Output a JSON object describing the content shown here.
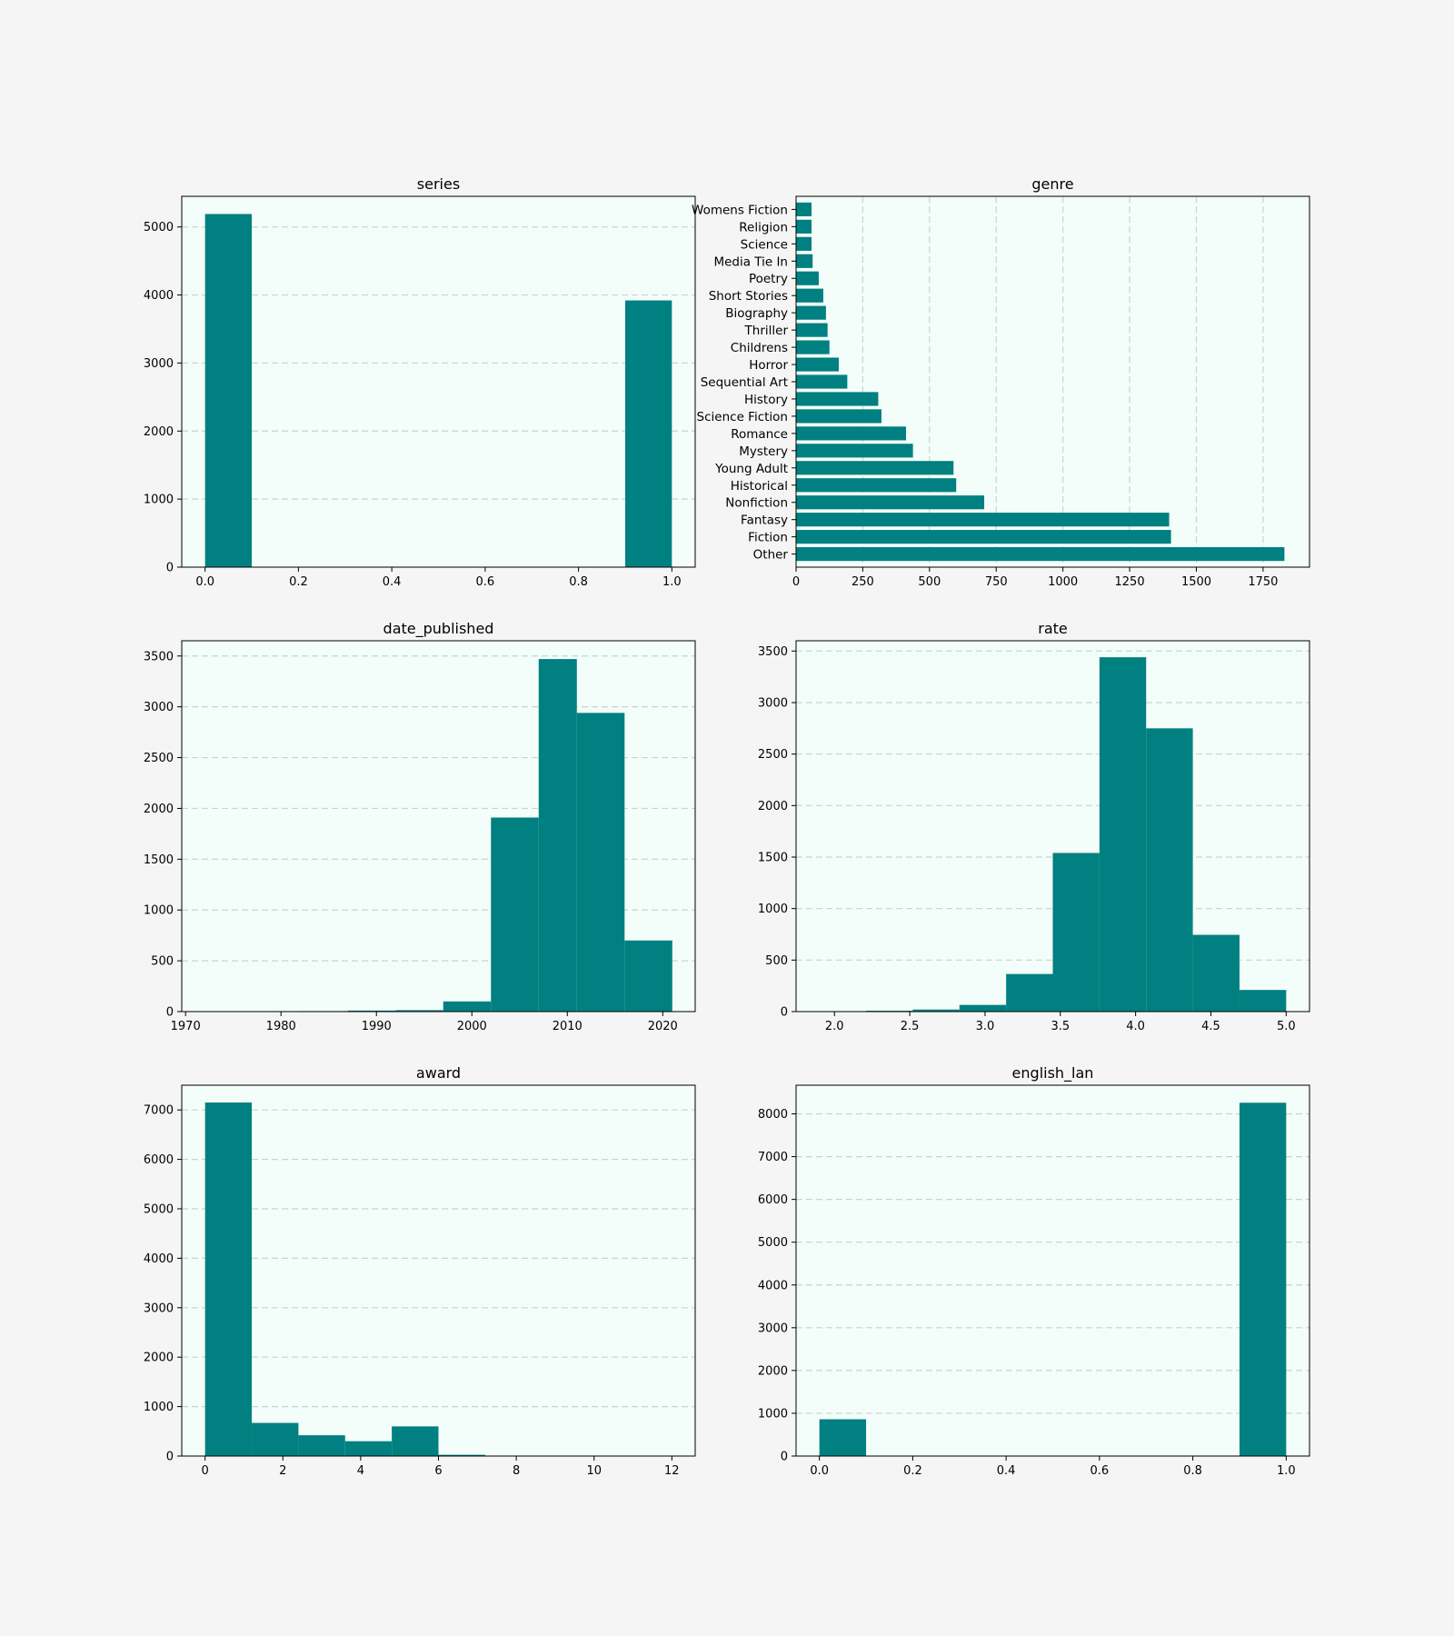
{
  "colors": {
    "figure_background": "#f5f5f5",
    "axes_background": "#f3fdf9",
    "bar": "#008080",
    "grid": "#c9d4d0"
  },
  "chart_data": [
    {
      "type": "bar",
      "title": "series",
      "orientation": "vertical",
      "bins": [
        [
          0.0,
          0.1
        ],
        [
          0.9,
          1.0
        ]
      ],
      "values": [
        5190,
        3920
      ],
      "xlim": [
        -0.05,
        1.05
      ],
      "ylim": [
        0,
        5450
      ],
      "xticks": [
        0.0,
        0.2,
        0.4,
        0.6,
        0.8,
        1.0
      ],
      "xtick_labels": [
        "0.0",
        "0.2",
        "0.4",
        "0.6",
        "0.8",
        "1.0"
      ],
      "yticks": [
        0,
        1000,
        2000,
        3000,
        4000,
        5000
      ],
      "ytick_labels": [
        "0",
        "1000",
        "2000",
        "3000",
        "4000",
        "5000"
      ],
      "grid": "horizontal dashed",
      "legend": "none"
    },
    {
      "type": "bar",
      "title": "genre",
      "orientation": "horizontal",
      "categories": [
        "Other",
        "Fiction",
        "Fantasy",
        "Nonfiction",
        "Historical",
        "Young Adult",
        "Mystery",
        "Romance",
        "Science Fiction",
        "History",
        "Sequential Art",
        "Horror",
        "Childrens",
        "Thriller",
        "Biography",
        "Short Stories",
        "Poetry",
        "Media Tie In",
        "Science",
        "Religion",
        "Womens Fiction"
      ],
      "values": [
        1830,
        1405,
        1398,
        705,
        600,
        590,
        438,
        412,
        320,
        308,
        192,
        160,
        125,
        118,
        112,
        102,
        85,
        62,
        58,
        58,
        58
      ],
      "xlim": [
        0,
        1924
      ],
      "xticks": [
        0,
        250,
        500,
        750,
        1000,
        1250,
        1500,
        1750
      ],
      "xtick_labels": [
        "0",
        "250",
        "500",
        "750",
        "1000",
        "1250",
        "1500",
        "1750"
      ],
      "grid": "vertical dashed",
      "legend": "none"
    },
    {
      "type": "bar",
      "title": "date_published",
      "orientation": "vertical",
      "bins": [
        [
          1972,
          1977
        ],
        [
          1977,
          1982
        ],
        [
          1982,
          1987
        ],
        [
          1987,
          1992
        ],
        [
          1992,
          1997
        ],
        [
          1997,
          2002
        ],
        [
          2002,
          2007
        ],
        [
          2007,
          2011
        ],
        [
          2011,
          2016
        ],
        [
          2016,
          2021
        ]
      ],
      "values": [
        2,
        3,
        5,
        10,
        14,
        100,
        1910,
        3470,
        2940,
        700
      ],
      "xlim": [
        1969.6,
        2023.4
      ],
      "ylim": [
        0,
        3650
      ],
      "xticks": [
        1970,
        1980,
        1990,
        2000,
        2010,
        2020
      ],
      "xtick_labels": [
        "1970",
        "1980",
        "1990",
        "2000",
        "2010",
        "2020"
      ],
      "yticks": [
        0,
        500,
        1000,
        1500,
        2000,
        2500,
        3000,
        3500
      ],
      "ytick_labels": [
        "0",
        "500",
        "1000",
        "1500",
        "2000",
        "2500",
        "3000",
        "3500"
      ],
      "grid": "horizontal dashed",
      "legend": "none"
    },
    {
      "type": "bar",
      "title": "rate",
      "orientation": "vertical",
      "bins": [
        [
          1.9,
          2.21
        ],
        [
          2.21,
          2.52
        ],
        [
          2.52,
          2.83
        ],
        [
          2.83,
          3.14
        ],
        [
          3.14,
          3.45
        ],
        [
          3.45,
          3.76
        ],
        [
          3.76,
          4.07
        ],
        [
          4.07,
          4.38
        ],
        [
          4.38,
          4.69
        ],
        [
          4.69,
          5.0
        ]
      ],
      "values": [
        3,
        8,
        20,
        65,
        365,
        1540,
        3440,
        2750,
        745,
        210
      ],
      "xlim": [
        1.745,
        5.155
      ],
      "ylim": [
        0,
        3600
      ],
      "xticks": [
        2.0,
        2.5,
        3.0,
        3.5,
        4.0,
        4.5,
        5.0
      ],
      "xtick_labels": [
        "2.0",
        "2.5",
        "3.0",
        "3.5",
        "4.0",
        "4.5",
        "5.0"
      ],
      "yticks": [
        0,
        500,
        1000,
        1500,
        2000,
        2500,
        3000,
        3500
      ],
      "ytick_labels": [
        "0",
        "500",
        "1000",
        "1500",
        "2000",
        "2500",
        "3000",
        "3500"
      ],
      "grid": "horizontal dashed",
      "legend": "none"
    },
    {
      "type": "bar",
      "title": "award",
      "orientation": "vertical",
      "bins": [
        [
          0,
          1.2
        ],
        [
          1.2,
          2.4
        ],
        [
          2.4,
          3.6
        ],
        [
          3.6,
          4.8
        ],
        [
          4.8,
          6.0
        ],
        [
          6.0,
          7.2
        ],
        [
          7.2,
          8.4
        ],
        [
          8.4,
          9.6
        ],
        [
          9.6,
          10.8
        ],
        [
          10.8,
          12.0
        ]
      ],
      "values": [
        7150,
        670,
        420,
        300,
        600,
        25,
        5,
        3,
        2,
        2
      ],
      "xlim": [
        -0.6,
        12.6
      ],
      "ylim": [
        0,
        7500
      ],
      "xticks": [
        0,
        2,
        4,
        6,
        8,
        10,
        12
      ],
      "xtick_labels": [
        "0",
        "2",
        "4",
        "6",
        "8",
        "10",
        "12"
      ],
      "yticks": [
        0,
        1000,
        2000,
        3000,
        4000,
        5000,
        6000,
        7000
      ],
      "ytick_labels": [
        "0",
        "1000",
        "2000",
        "3000",
        "4000",
        "5000",
        "6000",
        "7000"
      ],
      "grid": "horizontal dashed",
      "legend": "none"
    },
    {
      "type": "bar",
      "title": "english_lan",
      "orientation": "vertical",
      "bins": [
        [
          0.0,
          0.1
        ],
        [
          0.9,
          1.0
        ]
      ],
      "values": [
        860,
        8260
      ],
      "xlim": [
        -0.05,
        1.05
      ],
      "ylim": [
        0,
        8670
      ],
      "xticks": [
        0.0,
        0.2,
        0.4,
        0.6,
        0.8,
        1.0
      ],
      "xtick_labels": [
        "0.0",
        "0.2",
        "0.4",
        "0.6",
        "0.8",
        "1.0"
      ],
      "yticks": [
        0,
        1000,
        2000,
        3000,
        4000,
        5000,
        6000,
        7000,
        8000
      ],
      "ytick_labels": [
        "0",
        "1000",
        "2000",
        "3000",
        "4000",
        "5000",
        "6000",
        "7000",
        "8000"
      ],
      "grid": "horizontal dashed",
      "legend": "none"
    }
  ]
}
